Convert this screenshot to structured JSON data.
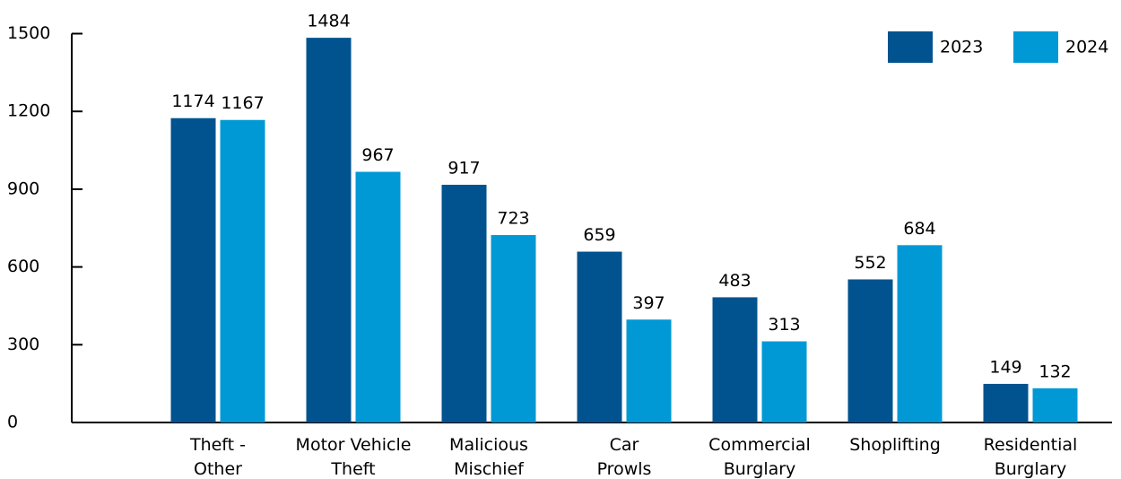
{
  "chart_data": {
    "type": "bar",
    "categories": [
      [
        "Theft -",
        "Other"
      ],
      [
        "Motor Vehicle",
        "Theft"
      ],
      [
        "Malicious",
        "Mischief"
      ],
      [
        "Car",
        "Prowls"
      ],
      [
        "Commercial",
        "Burglary"
      ],
      [
        "Shoplifting"
      ],
      [
        "Residential",
        "Burglary"
      ]
    ],
    "series": [
      {
        "name": "2023",
        "color": "#00538f",
        "values": [
          1174,
          1484,
          917,
          659,
          483,
          552,
          149
        ]
      },
      {
        "name": "2024",
        "color": "#0099d6",
        "values": [
          1167,
          967,
          723,
          397,
          313,
          684,
          132
        ]
      }
    ],
    "ylim": [
      0,
      1500
    ],
    "yticks": [
      0,
      300,
      600,
      900,
      1200,
      1500
    ],
    "legend": "top-right"
  }
}
